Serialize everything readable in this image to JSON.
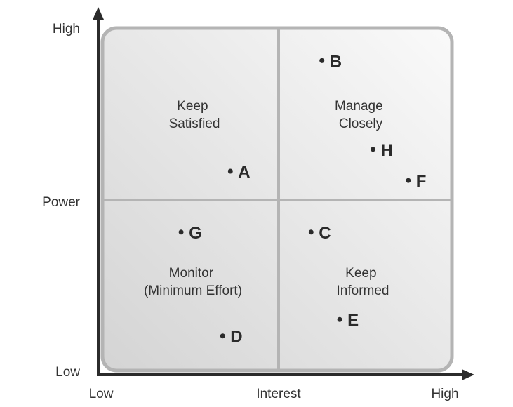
{
  "axes": {
    "x_title": "Interest",
    "x_low": "Low",
    "x_high": "High",
    "y_title": "Power",
    "y_low": "Low",
    "y_high": "High"
  },
  "quadrants": {
    "top_left": [
      "Keep",
      "Satisfied"
    ],
    "top_right": [
      "Manage",
      "Closely"
    ],
    "bottom_left": [
      "Monitor",
      "(Minimum Effort)"
    ],
    "bottom_right": [
      "Keep",
      "Informed"
    ]
  },
  "stakeholders": [
    {
      "label": "A",
      "interest": 0.366,
      "power": 0.582
    },
    {
      "label": "B",
      "interest": 0.628,
      "power": 0.905
    },
    {
      "label": "C",
      "interest": 0.597,
      "power": 0.404
    },
    {
      "label": "D",
      "interest": 0.344,
      "power": 0.101
    },
    {
      "label": "E",
      "interest": 0.679,
      "power": 0.149
    },
    {
      "label": "F",
      "interest": 0.875,
      "power": 0.555
    },
    {
      "label": "G",
      "interest": 0.225,
      "power": 0.404
    },
    {
      "label": "H",
      "interest": 0.774,
      "power": 0.646
    }
  ],
  "colors": {
    "axis": "#2b2b2b",
    "frame": "#b4b4b4",
    "quad_light": "#f9f9f9",
    "quad_dark": "#d6d6d6",
    "text": "#333333"
  }
}
